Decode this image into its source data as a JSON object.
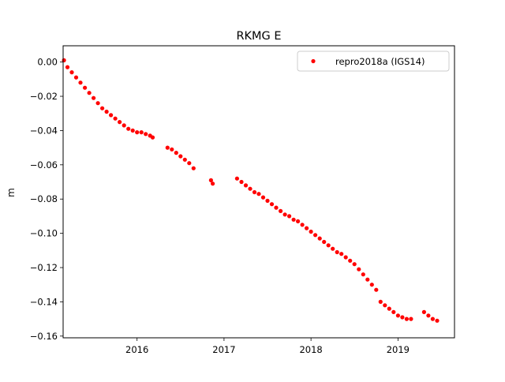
{
  "chart_data": {
    "type": "scatter",
    "title": "RKMG E",
    "xlabel": "",
    "ylabel": "m",
    "xlim": [
      2015.15,
      2019.65
    ],
    "ylim": [
      -0.161,
      0.0095
    ],
    "x_ticks": [
      2016,
      2017,
      2018,
      2019
    ],
    "x_tick_labels": [
      "2016",
      "2017",
      "2018",
      "2019"
    ],
    "y_ticks": [
      0.0,
      -0.02,
      -0.04,
      -0.06,
      -0.08,
      -0.1,
      -0.12,
      -0.14,
      -0.16
    ],
    "y_tick_labels": [
      "0.00",
      "−0.02",
      "−0.04",
      "−0.06",
      "−0.08",
      "−0.10",
      "−0.12",
      "−0.14",
      "−0.16"
    ],
    "grid": false,
    "legend_position": "top-right",
    "series": [
      {
        "name": "repro2018a (IGS14)",
        "color": "#ff0000",
        "marker": "circle",
        "points": [
          [
            2015.16,
            0.001
          ],
          [
            2015.2,
            -0.003
          ],
          [
            2015.25,
            -0.006
          ],
          [
            2015.3,
            -0.009
          ],
          [
            2015.35,
            -0.012
          ],
          [
            2015.4,
            -0.015
          ],
          [
            2015.45,
            -0.018
          ],
          [
            2015.5,
            -0.021
          ],
          [
            2015.55,
            -0.024
          ],
          [
            2015.6,
            -0.027
          ],
          [
            2015.65,
            -0.029
          ],
          [
            2015.7,
            -0.031
          ],
          [
            2015.75,
            -0.033
          ],
          [
            2015.8,
            -0.035
          ],
          [
            2015.85,
            -0.037
          ],
          [
            2015.9,
            -0.039
          ],
          [
            2015.95,
            -0.04
          ],
          [
            2016.0,
            -0.041
          ],
          [
            2016.05,
            -0.041
          ],
          [
            2016.1,
            -0.042
          ],
          [
            2016.15,
            -0.043
          ],
          [
            2016.18,
            -0.044
          ],
          [
            2016.35,
            -0.05
          ],
          [
            2016.4,
            -0.051
          ],
          [
            2016.45,
            -0.053
          ],
          [
            2016.5,
            -0.055
          ],
          [
            2016.55,
            -0.057
          ],
          [
            2016.6,
            -0.059
          ],
          [
            2016.65,
            -0.062
          ],
          [
            2016.85,
            -0.069
          ],
          [
            2016.87,
            -0.071
          ],
          [
            2017.15,
            -0.068
          ],
          [
            2017.2,
            -0.07
          ],
          [
            2017.25,
            -0.072
          ],
          [
            2017.3,
            -0.074
          ],
          [
            2017.35,
            -0.076
          ],
          [
            2017.4,
            -0.077
          ],
          [
            2017.45,
            -0.079
          ],
          [
            2017.5,
            -0.081
          ],
          [
            2017.55,
            -0.083
          ],
          [
            2017.6,
            -0.085
          ],
          [
            2017.65,
            -0.087
          ],
          [
            2017.7,
            -0.089
          ],
          [
            2017.75,
            -0.09
          ],
          [
            2017.8,
            -0.092
          ],
          [
            2017.85,
            -0.093
          ],
          [
            2017.9,
            -0.095
          ],
          [
            2017.95,
            -0.097
          ],
          [
            2018.0,
            -0.099
          ],
          [
            2018.05,
            -0.101
          ],
          [
            2018.1,
            -0.103
          ],
          [
            2018.15,
            -0.105
          ],
          [
            2018.2,
            -0.107
          ],
          [
            2018.25,
            -0.109
          ],
          [
            2018.3,
            -0.111
          ],
          [
            2018.35,
            -0.112
          ],
          [
            2018.4,
            -0.114
          ],
          [
            2018.45,
            -0.116
          ],
          [
            2018.5,
            -0.118
          ],
          [
            2018.55,
            -0.121
          ],
          [
            2018.6,
            -0.124
          ],
          [
            2018.65,
            -0.127
          ],
          [
            2018.7,
            -0.13
          ],
          [
            2018.75,
            -0.133
          ],
          [
            2018.8,
            -0.14
          ],
          [
            2018.85,
            -0.142
          ],
          [
            2018.9,
            -0.144
          ],
          [
            2018.95,
            -0.146
          ],
          [
            2019.0,
            -0.148
          ],
          [
            2019.05,
            -0.149
          ],
          [
            2019.1,
            -0.15
          ],
          [
            2019.15,
            -0.15
          ],
          [
            2019.3,
            -0.146
          ],
          [
            2019.35,
            -0.148
          ],
          [
            2019.4,
            -0.15
          ],
          [
            2019.45,
            -0.151
          ]
        ]
      }
    ]
  },
  "legend": {
    "entries": [
      "repro2018a (IGS14)"
    ]
  }
}
